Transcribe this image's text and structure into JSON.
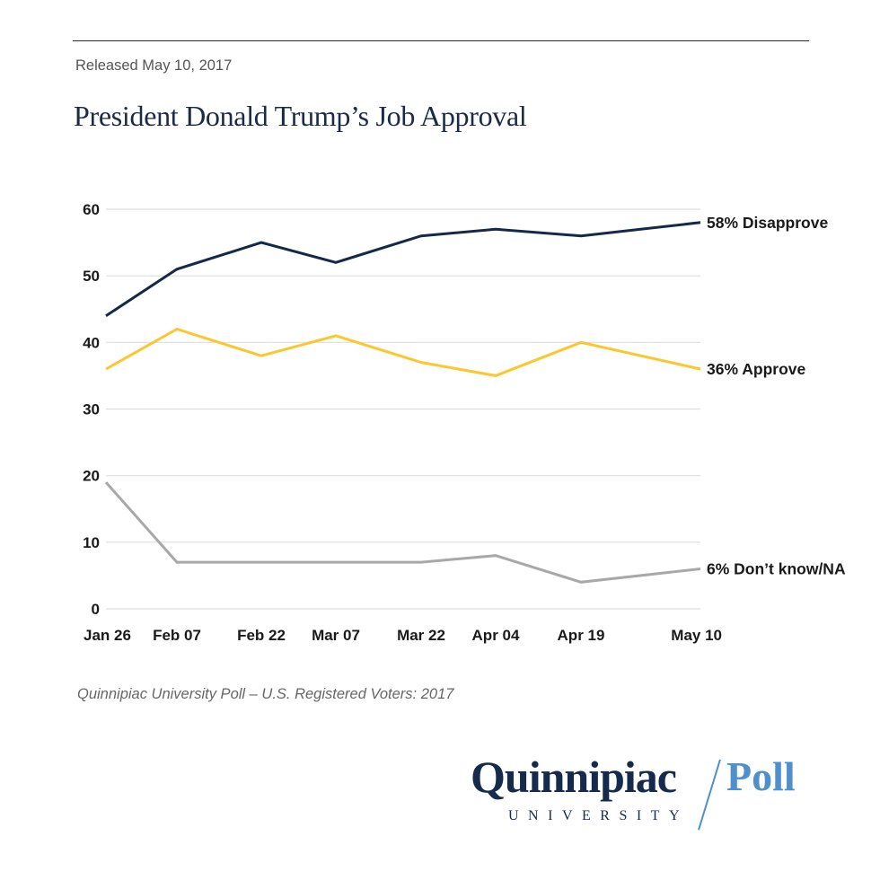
{
  "header": {
    "released": "Released May 10, 2017",
    "title": "President Donald Trump’s Job Approval"
  },
  "source": "Quinnipiac University Poll – U.S. Registered Voters: 2017",
  "logo": {
    "name": "Quinnipiac",
    "sub": "UNIVERSITY",
    "product": "Poll",
    "colors": {
      "name": "#162a4b",
      "product": "#4f8fcb"
    }
  },
  "chart_data": {
    "type": "line",
    "title": "President Donald Trump’s Job Approval",
    "xlabel": "",
    "ylabel": "",
    "categories": [
      "Jan 26",
      "Feb 07",
      "Feb 22",
      "Mar 07",
      "Mar 22",
      "Apr 04",
      "Apr 19",
      "May 10"
    ],
    "ylim": [
      0,
      60
    ],
    "yticks": [
      0,
      10,
      20,
      30,
      40,
      50,
      60
    ],
    "grid": true,
    "legend": "direct-labels-right",
    "series": [
      {
        "name": "Disapprove",
        "label": "58% Disapprove",
        "color": "#14284a",
        "values": [
          44,
          51,
          55,
          52,
          56,
          57,
          56,
          58
        ]
      },
      {
        "name": "Approve",
        "label": "36% Approve",
        "color": "#fcc72e",
        "values": [
          36,
          42,
          38,
          41,
          37,
          35,
          40,
          36
        ]
      },
      {
        "name": "Don't know/NA",
        "label": "6% Don’t know/NA",
        "color": "#a8a8a8",
        "values": [
          19,
          7,
          7,
          7,
          7,
          8,
          4,
          6
        ]
      }
    ]
  }
}
